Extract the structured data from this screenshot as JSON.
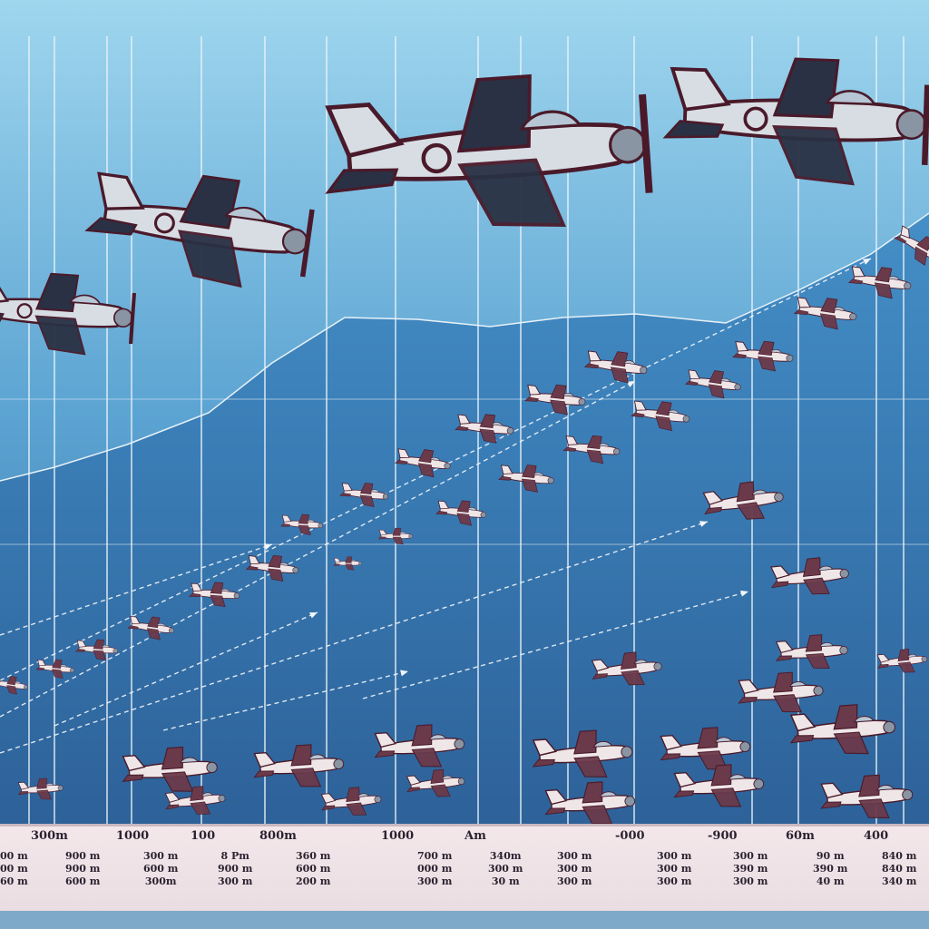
{
  "scene": {
    "colors": {
      "sky_top": "#9fd6ee",
      "sky_mid": "#5ba3d2",
      "sky_bottom": "#2a5f94",
      "mountain": "#3a7db8",
      "grid_line": "#e9f3fa",
      "trail": "#f2f6fa",
      "fuselage": "#d8dde3",
      "wing_dark": "#2a3144",
      "outline": "#4a1a2a",
      "small_plane_dark": "#6b3a4a",
      "small_plane_light": "#efe6e8"
    },
    "icons": [
      "fighter-plane-icon",
      "bomber-plane-icon",
      "small-plane-icon",
      "trail-arrow-icon"
    ]
  },
  "axis": {
    "top_labels": [
      "300m",
      "1000",
      "100",
      "800m",
      "1000",
      "Am",
      "-000",
      "-900",
      "60m",
      "400"
    ],
    "stacks": [
      [
        "00 m",
        "00 m",
        "60 m"
      ],
      [
        "900 m",
        "900 m",
        "600 m"
      ],
      [
        "300 m",
        "600 m",
        "300m"
      ],
      [
        "8 Pm",
        "900 m",
        "300 m"
      ],
      [
        "360 m",
        "600 m",
        "200 m"
      ],
      [
        "700 m",
        "000 m",
        "300 m"
      ],
      [
        "340m",
        "300 m",
        "30 m"
      ],
      [
        "300 m",
        "300 m",
        "300 m"
      ],
      [
        "300 m",
        "300 m",
        "300 m"
      ],
      [
        "300 m",
        "390 m",
        "300 m"
      ],
      [
        "90 m",
        "390 m",
        "40 m"
      ],
      [
        "840 m",
        "840 m",
        "340 m"
      ]
    ]
  }
}
